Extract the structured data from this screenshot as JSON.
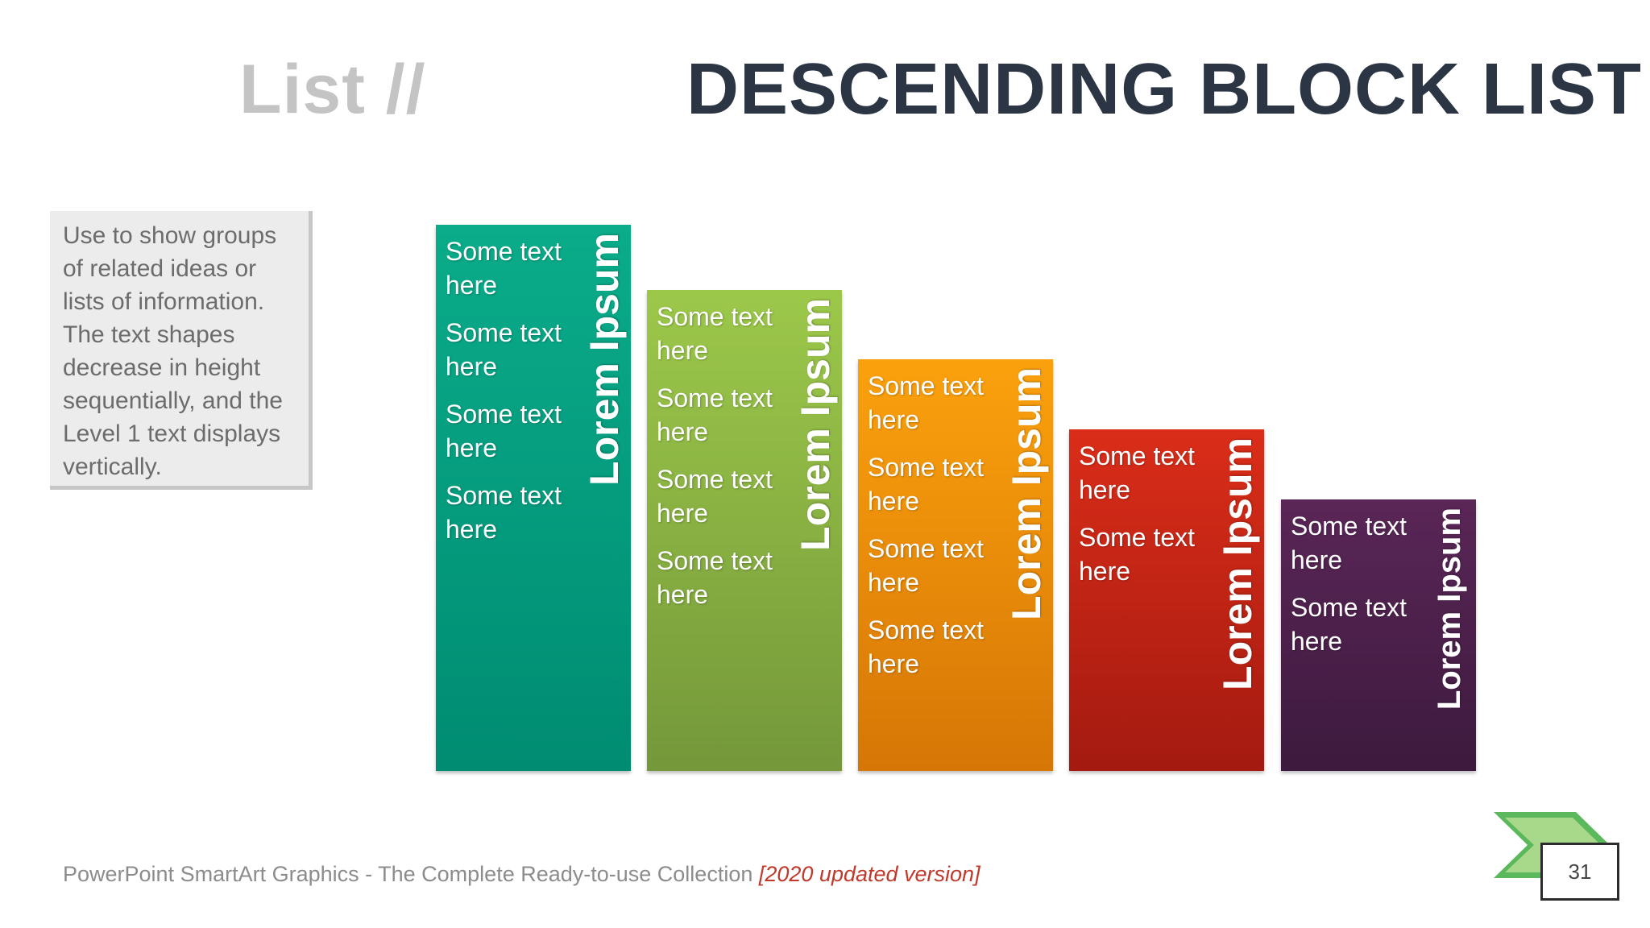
{
  "title": {
    "left": "List //",
    "right": "DESCENDING BLOCK LIST"
  },
  "note": {
    "text": "Use to show groups of related ideas or lists of information. The text shapes decrease in height sequentially, and the Level 1 text displays vertically."
  },
  "blocks": [
    {
      "heading": "Lorem Ipsum",
      "color": "#0aac8a",
      "items": [
        "Some text here",
        "Some text here",
        "Some text here",
        "Some text here"
      ]
    },
    {
      "heading": "Lorem Ipsum",
      "color": "#9cc84a",
      "items": [
        "Some text here",
        "Some text here",
        "Some text here",
        "Some text here"
      ]
    },
    {
      "heading": "Lorem Ipsum",
      "color": "#fba10d",
      "items": [
        "Some text here",
        "Some text here",
        "Some text here",
        "Some text here"
      ]
    },
    {
      "heading": "Lorem Ipsum",
      "color": "#da2d19",
      "items": [
        "Some text here",
        "Some text here"
      ]
    },
    {
      "heading": "Lorem Ipsum",
      "color": "#5a2657",
      "items": [
        "Some text here",
        "Some text here"
      ]
    }
  ],
  "footer": {
    "text": "PowerPoint SmartArt Graphics - The Complete Ready-to-use Collection ",
    "highlight": "[2020 updated version]"
  },
  "page": {
    "number": "31",
    "icon": "page-arrow-icon",
    "accent": "#5cb85c"
  }
}
